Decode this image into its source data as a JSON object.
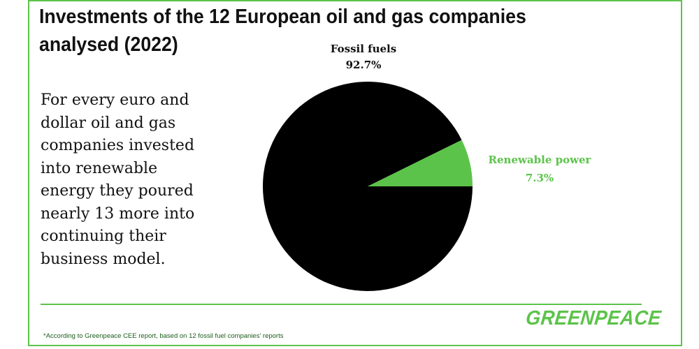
{
  "title": "Investments of the 12 European oil and gas companies analysed (2022)",
  "description": "For every euro and dollar oil and gas companies invested into renewable energy they poured nearly 13 more into continuing their business model.",
  "footnote": "*According to Greenpeace CEE report, based on 12 fossil fuel companies' reports",
  "logo": "GREENPEACE",
  "colors": {
    "accent": "#5cc34a",
    "fossil": "#000000",
    "text": "#111111"
  },
  "chart_data": {
    "type": "pie",
    "slices": [
      {
        "label": "Fossil fuels",
        "value": 92.7,
        "value_label": "92.7%",
        "color": "#000000",
        "label_color": "#111111"
      },
      {
        "label": "Renewable power",
        "value": 7.3,
        "value_label": "7.3%",
        "color": "#5cc34a",
        "label_color": "#5cc34a"
      }
    ]
  }
}
